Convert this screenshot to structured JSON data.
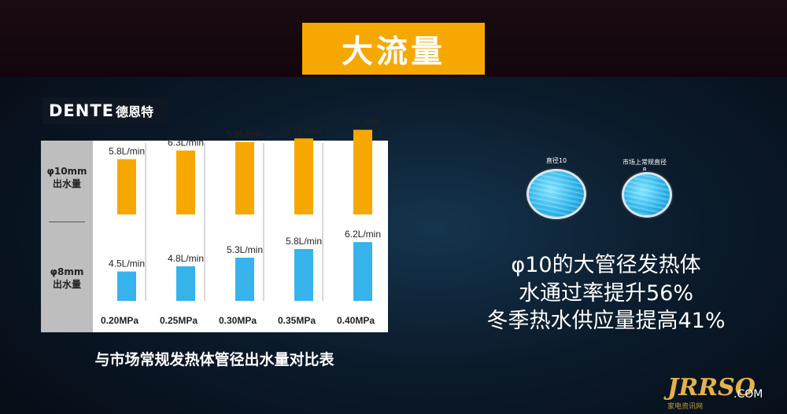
{
  "title": "大流量",
  "logo": {
    "latin": "DENTE",
    "chinese": "德恩特"
  },
  "row_labels": [
    {
      "line1": "φ10mm",
      "line2": "出水量"
    },
    {
      "line1": "φ8mm",
      "line2": "出水量"
    }
  ],
  "caption": "与市场常规发热体管径出水量对比表",
  "chart_data": {
    "type": "bar",
    "categories": [
      "0.20MPa",
      "0.25MPa",
      "0.30MPa",
      "0.35MPa",
      "0.40MPa"
    ],
    "series": [
      {
        "name": "φ10mm 出水量",
        "values": [
          5.8,
          6.3,
          6.8,
          7.0,
          7.5
        ],
        "labels": [
          "5.8L/min",
          "6.3L/min",
          "6.8L/min",
          "7.0L/min",
          "7.5L/min"
        ],
        "color": "#f7a800"
      },
      {
        "name": "φ8mm 出水量",
        "values": [
          4.5,
          4.8,
          5.3,
          5.8,
          6.2
        ],
        "labels": [
          "4.5L/min",
          "4.8L/min",
          "5.3L/min",
          "5.8L/min",
          "6.2L/min"
        ],
        "color": "#36b3ea"
      }
    ],
    "unit": "L/min"
  },
  "circles": [
    {
      "label": "直径10"
    },
    {
      "label": "市场上常规直径8"
    }
  ],
  "highlights": [
    "φ10的大管径发热体",
    "水通过率提升56%",
    "冬季热水供应量提高41%"
  ],
  "watermark": {
    "main": "JRRSO",
    "suffix": ".COM",
    "sub": "家电资讯网"
  }
}
